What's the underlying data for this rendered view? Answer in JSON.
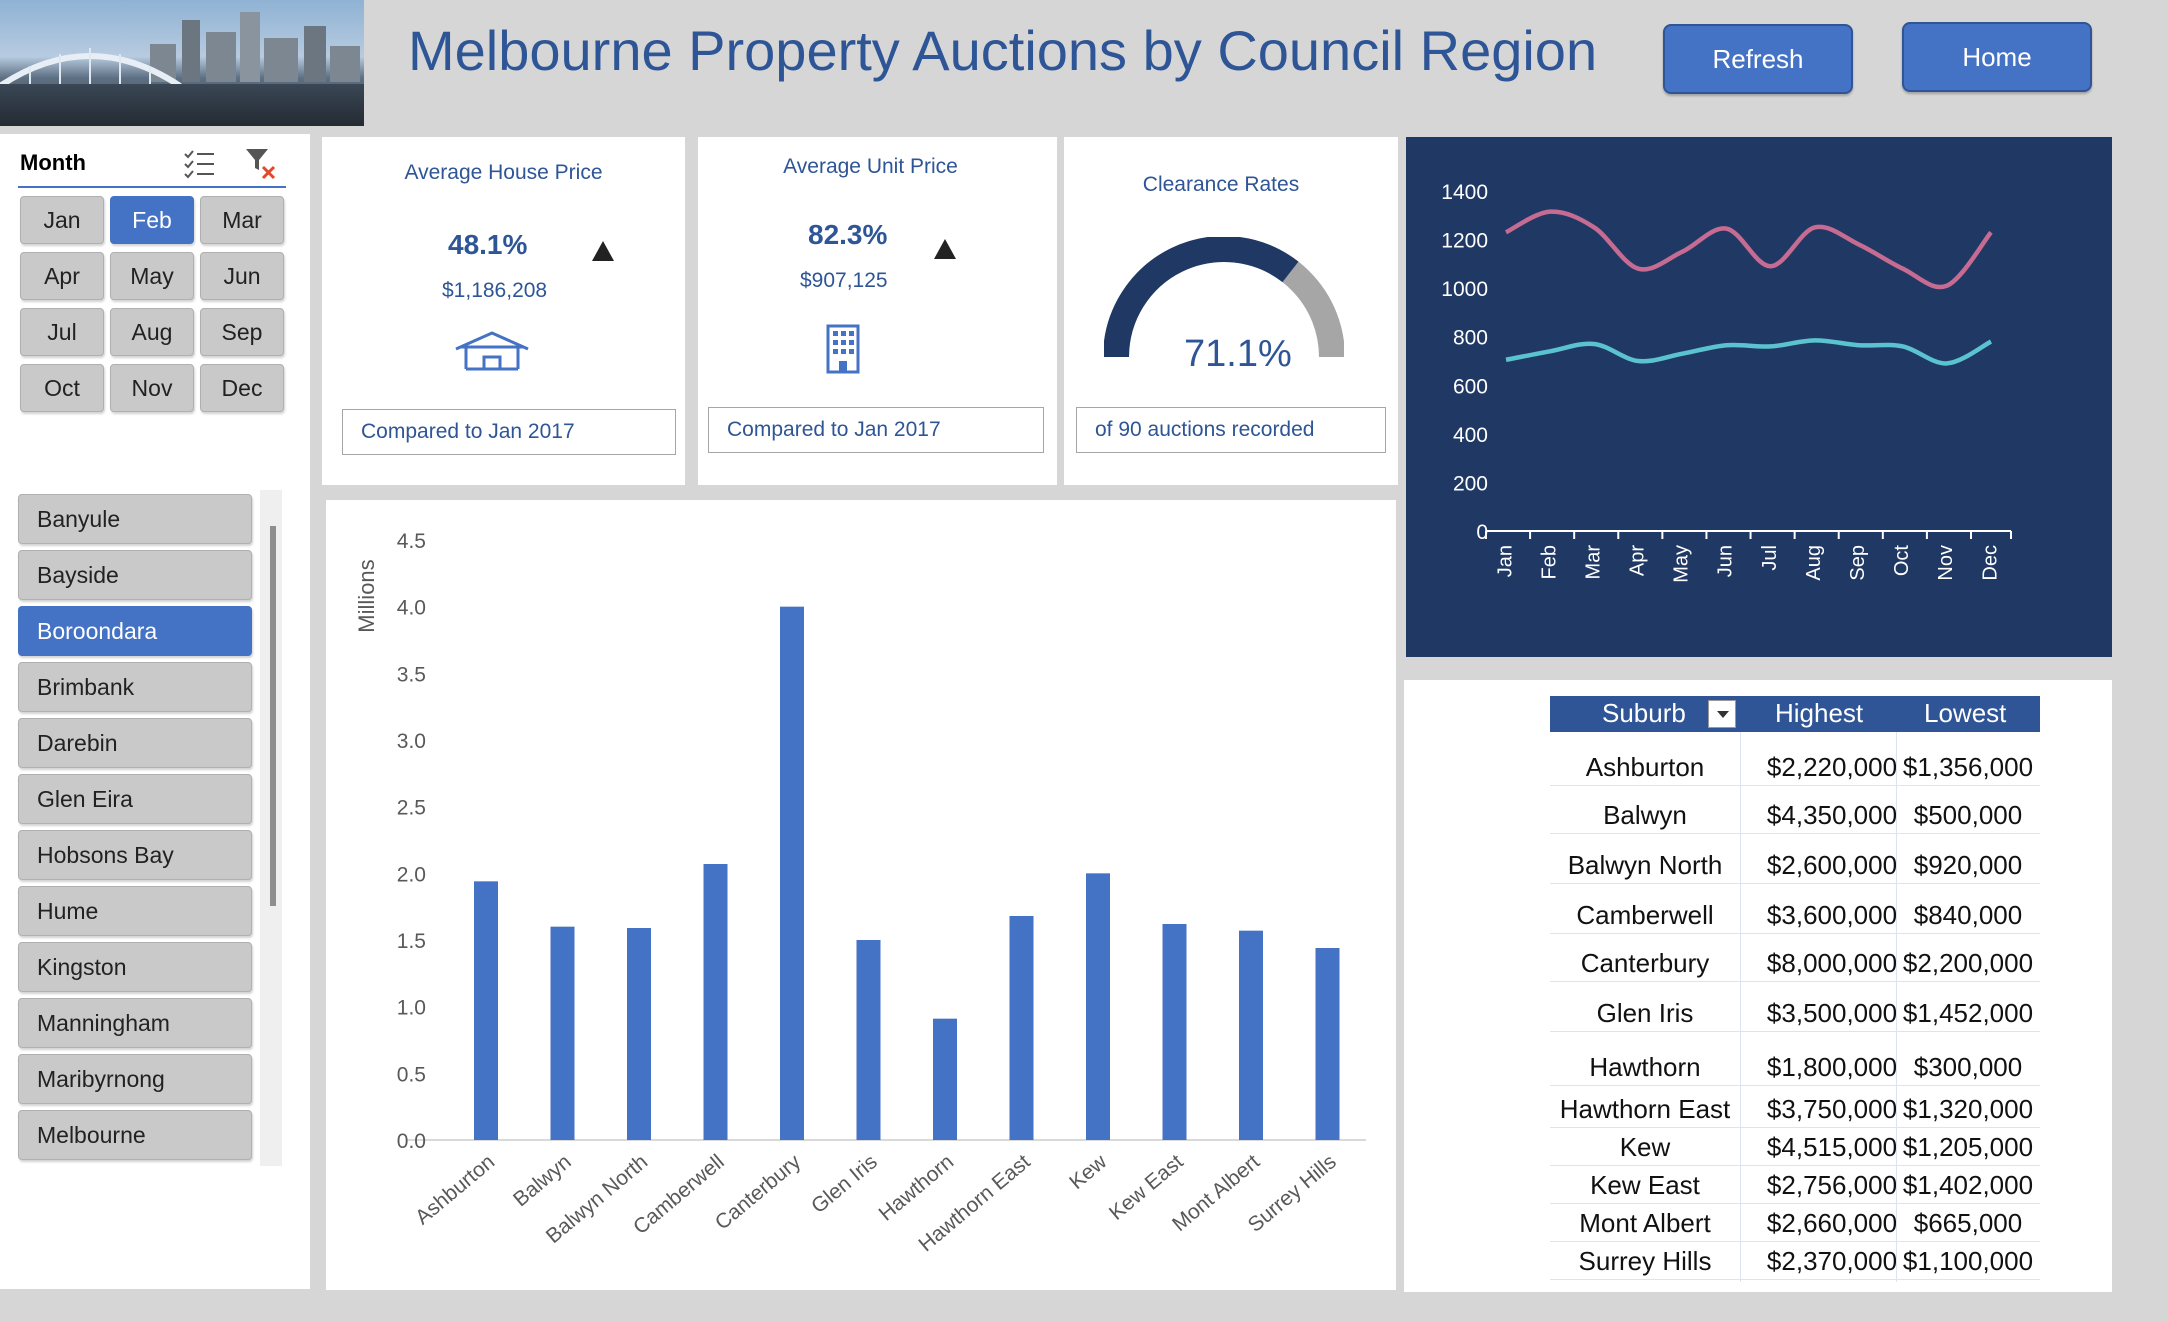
{
  "header": {
    "title": "Melbourne Property Auctions by Council Region",
    "refresh_label": "Refresh",
    "home_label": "Home"
  },
  "month_slicer": {
    "label": "Month",
    "months": [
      "Jan",
      "Feb",
      "Mar",
      "Apr",
      "May",
      "Jun",
      "Jul",
      "Aug",
      "Sep",
      "Oct",
      "Nov",
      "Dec"
    ],
    "selected": "Feb"
  },
  "council_slicer": {
    "items": [
      "Banyule",
      "Bayside",
      "Boroondara",
      "Brimbank",
      "Darebin",
      "Glen Eira",
      "Hobsons Bay",
      "Hume",
      "Kingston",
      "Manningham",
      "Maribyrnong",
      "Melbourne"
    ],
    "selected": "Boroondara"
  },
  "kpis": {
    "house": {
      "title": "Average House Price",
      "pct": "48.1%",
      "value": "$1,186,208",
      "compare": "Compared to Jan 2017"
    },
    "unit": {
      "title": "Average Unit Price",
      "pct": "82.3%",
      "value": "$907,125",
      "compare": "Compared to Jan 2017"
    },
    "clearance": {
      "title": "Clearance Rates",
      "pct": "71.1%",
      "rate": 0.711,
      "note": "of 90 auctions recorded"
    }
  },
  "colors": {
    "accent": "#4472c4",
    "title_blue": "#2e5596",
    "navy": "#203864",
    "line_pink": "#c66b91",
    "line_teal": "#5bc3cf",
    "gauge_track": "#a6a6a6"
  },
  "chart_data": [
    {
      "type": "line",
      "x": [
        "Jan",
        "Feb",
        "Mar",
        "Apr",
        "May",
        "Jun",
        "Jul",
        "Aug",
        "Sep",
        "Oct",
        "Nov",
        "Dec"
      ],
      "series": [
        {
          "values": [
            1230,
            1315,
            1250,
            1080,
            1150,
            1245,
            1090,
            1250,
            1180,
            1080,
            1010,
            1230
          ]
        },
        {
          "values": [
            705,
            740,
            770,
            700,
            730,
            765,
            760,
            785,
            765,
            760,
            690,
            780
          ]
        }
      ],
      "ylim": [
        0,
        1400
      ],
      "yticks": [
        "0",
        "200",
        "400",
        "600",
        "800",
        "1000",
        "1200",
        "1400"
      ],
      "grid": false
    },
    {
      "type": "bar",
      "categories": [
        "Ashburton",
        "Balwyn",
        "Balwyn North",
        "Camberwell",
        "Canterbury",
        "Glen Iris",
        "Hawthorn",
        "Hawthorn East",
        "Kew",
        "Kew East",
        "Mont Albert",
        "Surrey Hills"
      ],
      "values": [
        1.94,
        1.6,
        1.59,
        2.07,
        4.0,
        1.5,
        0.91,
        1.68,
        2.0,
        1.62,
        1.57,
        1.44
      ],
      "ylabel": "Millions",
      "ylim": [
        0,
        4.5
      ],
      "yticks": [
        "0.0",
        "0.5",
        "1.0",
        "1.5",
        "2.0",
        "2.5",
        "3.0",
        "3.5",
        "4.0",
        "4.5"
      ],
      "grid": false
    }
  ],
  "table": {
    "headers": [
      "Suburb",
      "Highest",
      "Lowest"
    ],
    "rows": [
      [
        "Ashburton",
        "$2,220,000",
        "$1,356,000"
      ],
      [
        "Balwyn",
        "$4,350,000",
        "$500,000"
      ],
      [
        "Balwyn North",
        "$2,600,000",
        "$920,000"
      ],
      [
        "Camberwell",
        "$3,600,000",
        "$840,000"
      ],
      [
        "Canterbury",
        "$8,000,000",
        "$2,200,000"
      ],
      [
        "Glen Iris",
        "$3,500,000",
        "$1,452,000"
      ],
      [
        "Hawthorn",
        "$1,800,000",
        "$300,000"
      ],
      [
        "Hawthorn East",
        "$3,750,000",
        "$1,320,000"
      ],
      [
        "Kew",
        "$4,515,000",
        "$1,205,000"
      ],
      [
        "Kew East",
        "$2,756,000",
        "$1,402,000"
      ],
      [
        "Mont Albert",
        "$2,660,000",
        "$665,000"
      ],
      [
        "Surrey Hills",
        "$2,370,000",
        "$1,100,000"
      ]
    ]
  }
}
